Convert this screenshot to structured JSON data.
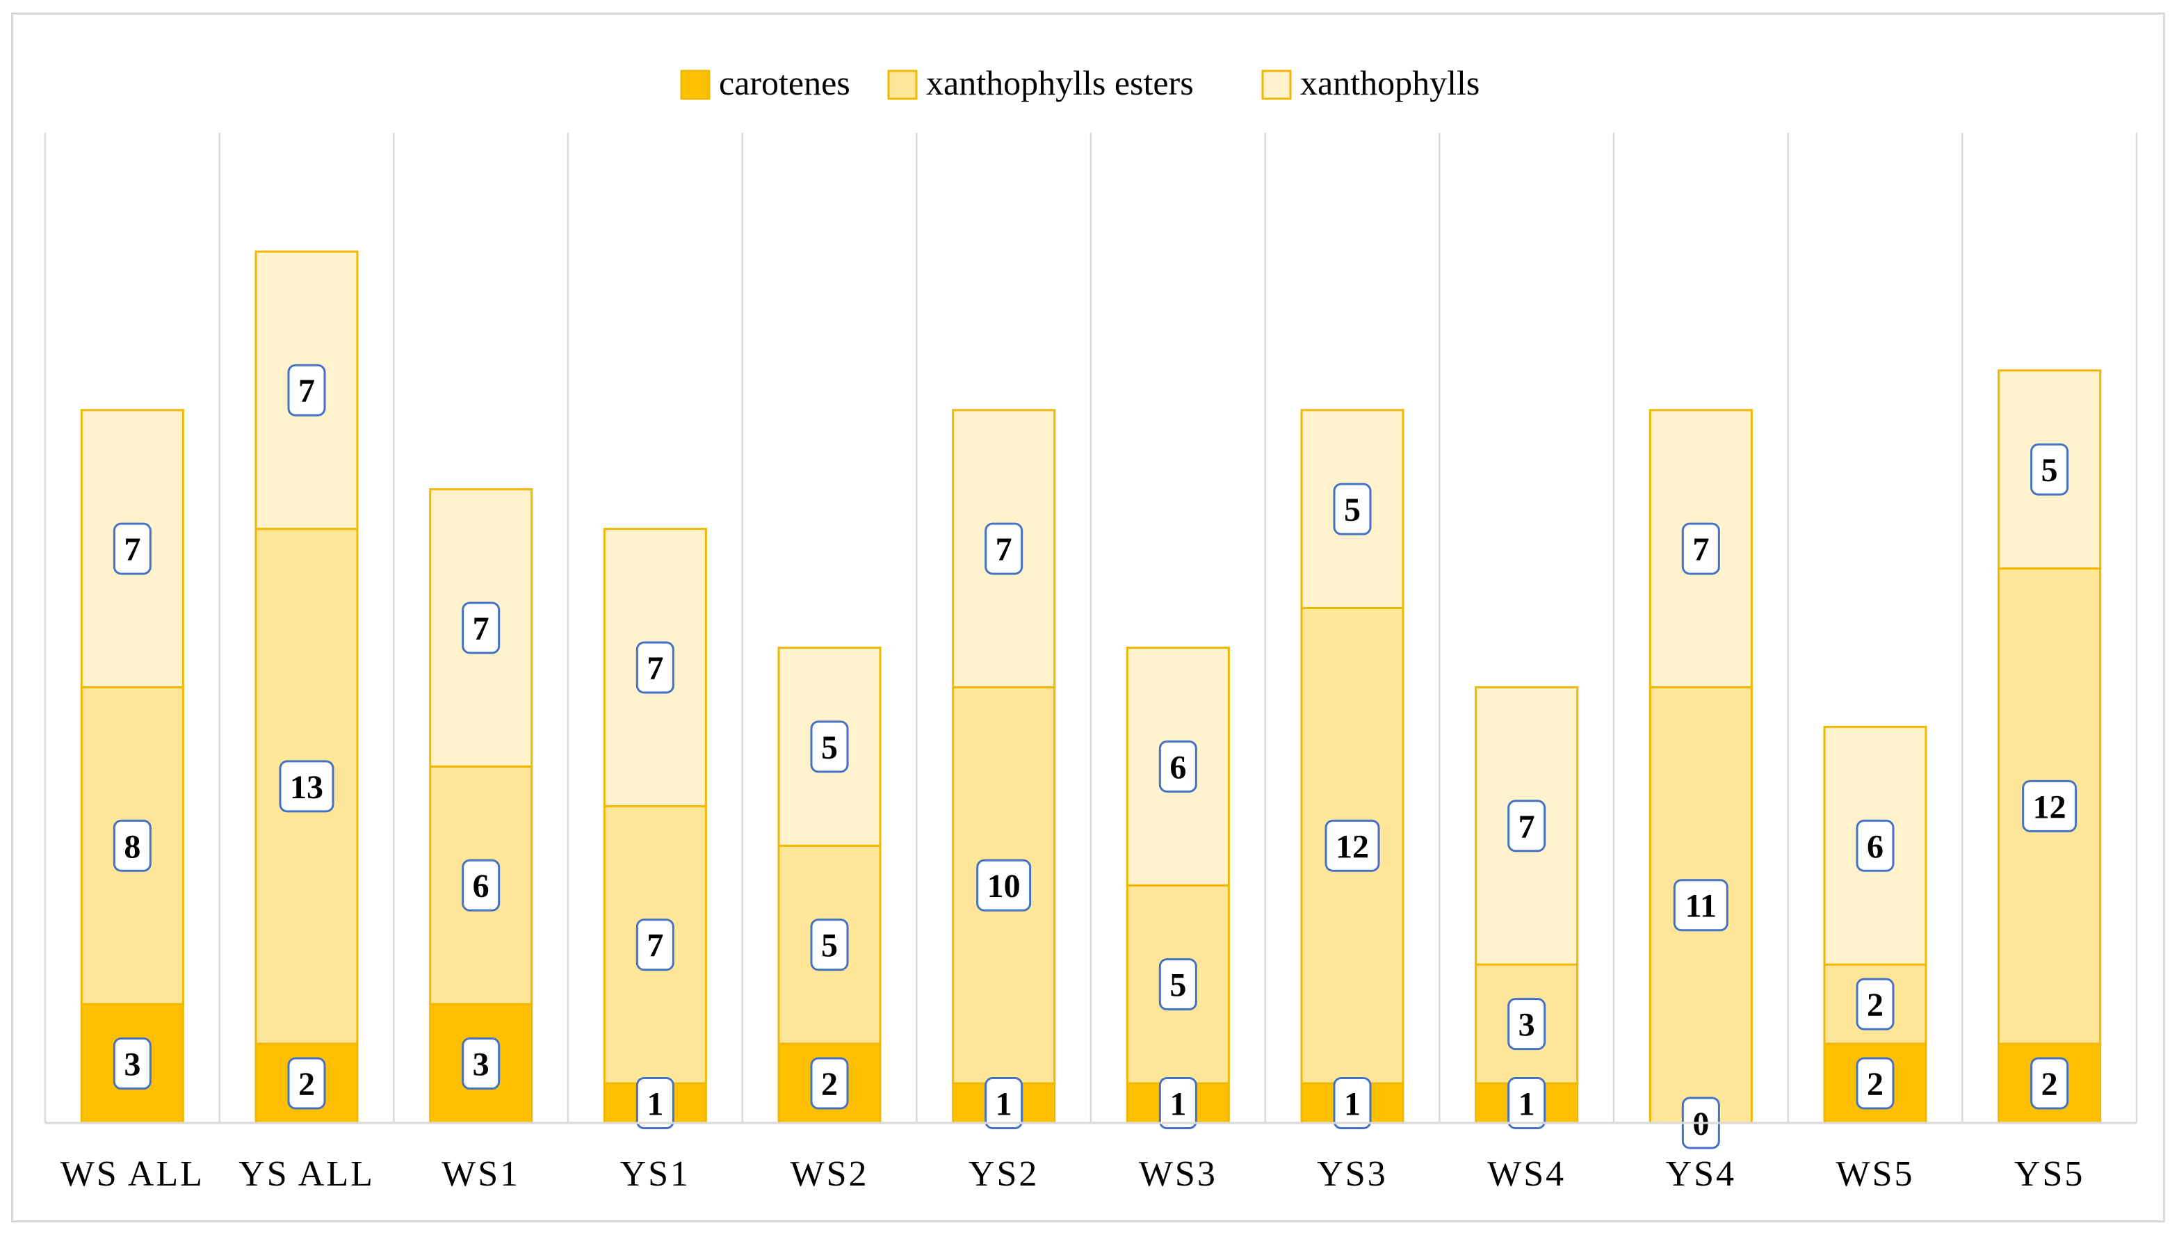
{
  "chart_data": {
    "type": "bar",
    "stacked": true,
    "categories": [
      "WS ALL",
      "YS ALL",
      "WS1",
      "YS1",
      "WS2",
      "YS2",
      "WS3",
      "YS3",
      "WS4",
      "YS4",
      "WS5",
      "YS5"
    ],
    "series": [
      {
        "name": "carotenes",
        "color": "#ffc000",
        "values": [
          3,
          2,
          3,
          1,
          2,
          1,
          1,
          1,
          1,
          0,
          2,
          2
        ]
      },
      {
        "name": "xanthophylls esters",
        "color": "#ffe699",
        "values": [
          8,
          13,
          6,
          7,
          5,
          10,
          5,
          12,
          3,
          11,
          2,
          12
        ]
      },
      {
        "name": "xanthophylls",
        "color": "#fff2cc",
        "values": [
          7,
          7,
          7,
          7,
          5,
          7,
          6,
          5,
          7,
          7,
          6,
          5
        ]
      }
    ],
    "ylim": [
      0,
      25
    ],
    "grid": "vertical",
    "legend": "top-center",
    "bar_outline_color": "#f2b800",
    "label_border_color": "#4472c4"
  }
}
